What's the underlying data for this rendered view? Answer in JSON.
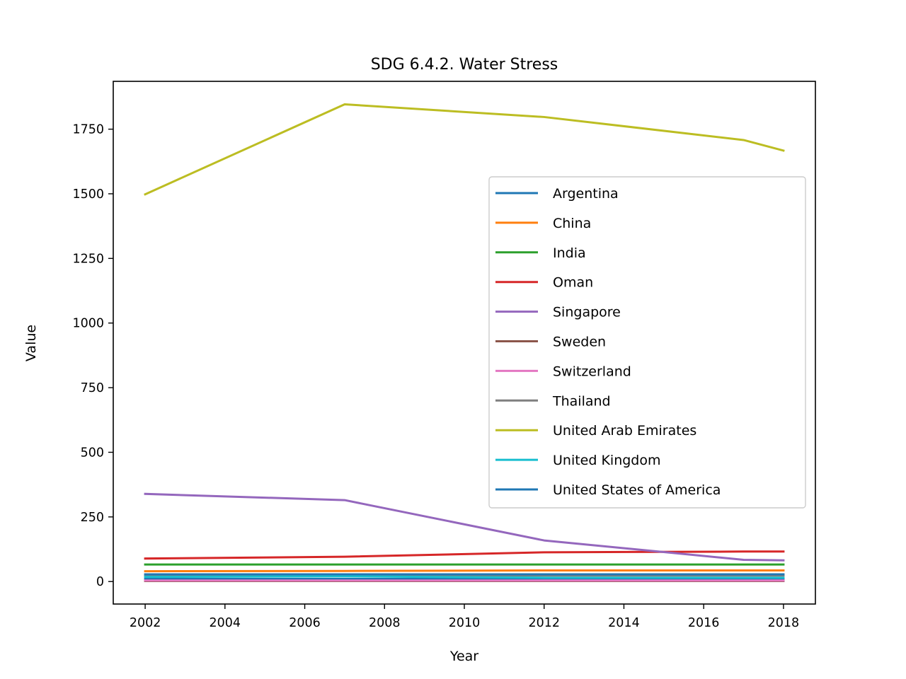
{
  "chart_data": {
    "type": "line",
    "title": "SDG 6.4.2. Water Stress",
    "xlabel": "Year",
    "ylabel": "Value",
    "x": [
      2002,
      2007,
      2012,
      2017,
      2018
    ],
    "xlim": [
      2001.2,
      2018.8
    ],
    "ylim": [
      -87,
      1935
    ],
    "xticks": [
      2002,
      2004,
      2006,
      2008,
      2010,
      2012,
      2014,
      2016,
      2018
    ],
    "yticks": [
      0,
      250,
      500,
      750,
      1000,
      1250,
      1500,
      1750
    ],
    "grid": false,
    "legend_position": "center-right",
    "series": [
      {
        "name": "Argentina",
        "color": "#1f77b4",
        "values": [
          10,
          10,
          10,
          10,
          10
        ]
      },
      {
        "name": "China",
        "color": "#ff7f0e",
        "values": [
          40,
          41,
          43,
          43,
          43
        ]
      },
      {
        "name": "India",
        "color": "#2ca02c",
        "values": [
          66,
          66,
          66,
          66,
          66
        ]
      },
      {
        "name": "Oman",
        "color": "#d62728",
        "values": [
          89,
          96,
          113,
          116,
          116
        ]
      },
      {
        "name": "Singapore",
        "color": "#9467bd",
        "values": [
          339,
          315,
          159,
          84,
          82
        ]
      },
      {
        "name": "Sweden",
        "color": "#8c564b",
        "values": [
          2,
          2,
          2,
          2,
          2
        ]
      },
      {
        "name": "Switzerland",
        "color": "#e377c2",
        "values": [
          4,
          4,
          4,
          4,
          4
        ]
      },
      {
        "name": "Thailand",
        "color": "#7f7f7f",
        "values": [
          23,
          23,
          23,
          23,
          23
        ]
      },
      {
        "name": "United Arab Emirates",
        "color": "#bcbd22",
        "values": [
          1498,
          1846,
          1797,
          1708,
          1667
        ]
      },
      {
        "name": "United Kingdom",
        "color": "#17becf",
        "values": [
          18,
          20,
          15,
          15,
          15
        ]
      },
      {
        "name": "United States of America",
        "color": "#1f77b4",
        "values": [
          28,
          28,
          28,
          28,
          28
        ]
      }
    ]
  }
}
